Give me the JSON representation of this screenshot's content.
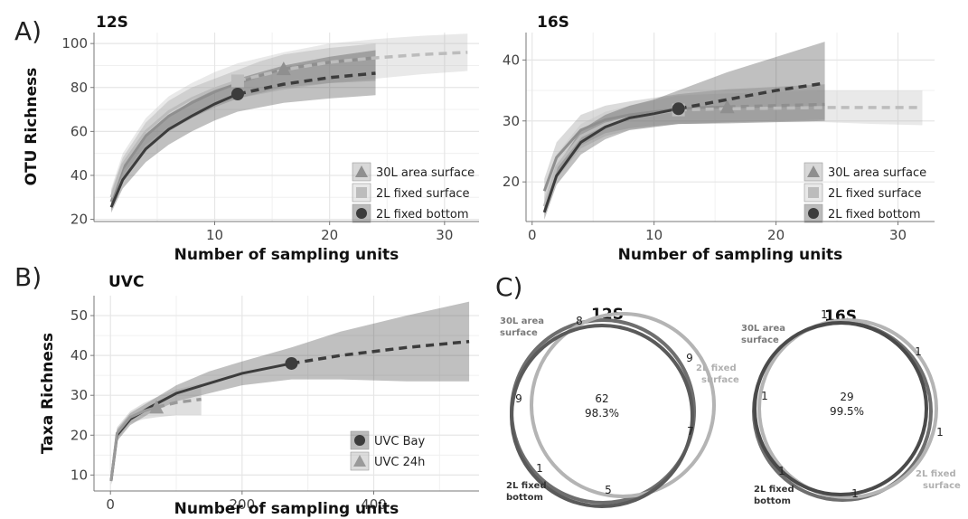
{
  "panel_labels": {
    "a": "A)",
    "b": "B)",
    "c": "C)"
  },
  "colors": {
    "grid": "#e6e6e6",
    "axis": "#777777",
    "area_surface": "#8f8f8f",
    "fixed_surface": "#bcbcbc",
    "fixed_bottom": "#3c3c3c",
    "uvc_bay": "#3c3c3c",
    "uvc_24h": "#9a9a9a",
    "venn_area": "#6e6e6e",
    "venn_fixed_surface": "#b4b4b4",
    "venn_fixed_bottom": "#5a5a5a"
  },
  "chart_data": [
    {
      "id": "p12s",
      "type": "line",
      "title": "12S",
      "xlabel": "Number of sampling units",
      "ylabel": "OTU Richness",
      "xlim": [
        -0.5,
        33
      ],
      "ylim": [
        19,
        105
      ],
      "xticks": [
        10,
        20,
        30
      ],
      "yticks": [
        20,
        40,
        60,
        80,
        100
      ],
      "legend_position": "bottom-right",
      "series": [
        {
          "name": "30L area surface",
          "key": "area_surface",
          "marker": "triangle",
          "x": [
            1,
            2,
            4,
            6,
            8,
            10,
            12,
            14,
            16,
            20,
            24
          ],
          "y": [
            28,
            43,
            58,
            67,
            73,
            78,
            82,
            85.5,
            88.5,
            91.5,
            93.5
          ],
          "lo": [
            24,
            38,
            52,
            60,
            66,
            71,
            75,
            77.5,
            80,
            82,
            83
          ],
          "hi": [
            33,
            48,
            64,
            74,
            80,
            84,
            88,
            92,
            95,
            98,
            100
          ],
          "sample": [
            16,
            88.5
          ],
          "extrap_end": 24
        },
        {
          "name": "2L fixed surface",
          "key": "fixed_surface",
          "marker": "square",
          "x": [
            1,
            2,
            4,
            6,
            8,
            10,
            12,
            16,
            20,
            24,
            28,
            32
          ],
          "y": [
            30,
            45,
            60,
            69,
            75,
            79.5,
            83,
            88,
            91.5,
            93.5,
            95,
            96
          ],
          "lo": [
            26,
            40,
            54,
            62,
            68,
            72,
            75,
            79,
            82,
            84,
            86,
            87.5
          ],
          "hi": [
            34,
            50,
            66,
            76,
            82,
            87,
            91,
            96,
            100,
            102,
            103.5,
            104.5
          ],
          "sample": [
            12,
            83
          ],
          "extrap_end": 32
        },
        {
          "name": "2L fixed bottom",
          "key": "fixed_bottom",
          "marker": "circle",
          "x": [
            1,
            2,
            4,
            6,
            8,
            10,
            12,
            16,
            20,
            24
          ],
          "y": [
            25.5,
            38,
            52,
            61,
            67,
            72.5,
            77,
            81.5,
            84.5,
            86.5
          ],
          "lo": [
            23,
            34,
            46,
            54,
            60,
            65,
            69,
            73,
            75,
            76.5
          ],
          "hi": [
            28,
            42,
            58,
            67,
            74,
            79,
            84,
            90,
            94,
            97
          ],
          "sample": [
            12,
            77
          ],
          "extrap_end": 24
        }
      ]
    },
    {
      "id": "p16s",
      "type": "line",
      "title": "16S",
      "xlabel": "Number of sampling units",
      "ylabel": "",
      "xlim": [
        -0.5,
        33
      ],
      "ylim": [
        13.5,
        44.5
      ],
      "xticks": [
        0,
        10,
        20,
        30
      ],
      "yticks": [
        20,
        30,
        40
      ],
      "legend_position": "bottom-right",
      "series": [
        {
          "name": "30L area surface",
          "key": "area_surface",
          "marker": "triangle",
          "x": [
            1,
            2,
            4,
            6,
            8,
            10,
            12,
            14,
            16,
            20,
            24
          ],
          "y": [
            18.5,
            24,
            28.5,
            30.2,
            31,
            31.5,
            32,
            32.2,
            32.3,
            32.5,
            32.7
          ],
          "lo": [
            16.5,
            21.5,
            26,
            28,
            28.8,
            29.2,
            29.5,
            29.6,
            29.8,
            30,
            30.2
          ],
          "hi": [
            20.5,
            26.5,
            31,
            32.5,
            33.2,
            33.8,
            34.4,
            34.8,
            35.2,
            35.6,
            36
          ],
          "sample": [
            16,
            32.3
          ],
          "extrap_end": 24
        },
        {
          "name": "2L fixed surface",
          "key": "fixed_surface",
          "marker": "square",
          "x": [
            1,
            2,
            4,
            6,
            8,
            10,
            12,
            16,
            20,
            24,
            28,
            32
          ],
          "y": [
            16,
            22.5,
            27.5,
            29.5,
            30.5,
            31.2,
            31.8,
            32,
            32.1,
            32.2,
            32.2,
            32.2
          ],
          "lo": [
            14.5,
            20.5,
            25.5,
            27.5,
            28.5,
            29,
            29.5,
            29.7,
            29.8,
            29.8,
            29.5,
            29.3
          ],
          "hi": [
            17.5,
            24.5,
            29.5,
            31.5,
            32.5,
            33.4,
            34.2,
            34.5,
            34.8,
            35,
            35,
            35
          ],
          "sample": [
            12,
            31.8
          ],
          "extrap_end": 32
        },
        {
          "name": "2L fixed bottom",
          "key": "fixed_bottom",
          "marker": "circle",
          "x": [
            1,
            2,
            4,
            6,
            8,
            10,
            12,
            16,
            20,
            24
          ],
          "y": [
            15,
            21,
            26.5,
            29,
            30.5,
            31.2,
            32,
            33.5,
            35,
            36.2
          ],
          "lo": [
            13.8,
            19.5,
            24.5,
            27,
            28.5,
            29,
            29.5,
            29.6,
            29.8,
            30
          ],
          "hi": [
            16.5,
            22.5,
            28.5,
            31,
            32.5,
            33.5,
            35,
            38,
            40.5,
            43
          ],
          "sample": [
            12,
            32
          ],
          "extrap_end": 24
        }
      ]
    },
    {
      "id": "puvc",
      "type": "line",
      "title": "UVC",
      "xlabel": "Number of sampling units",
      "ylabel": "Taxa Richness",
      "xlim": [
        -25,
        560
      ],
      "ylim": [
        6,
        55
      ],
      "xticks": [
        0,
        200,
        400
      ],
      "yticks": [
        10,
        20,
        30,
        40,
        50
      ],
      "legend_position": "bottom-right",
      "series": [
        {
          "name": "UVC Bay",
          "key": "uvc_bay",
          "marker": "circle",
          "x": [
            1,
            10,
            30,
            60,
            100,
            150,
            200,
            275,
            350,
            450,
            545
          ],
          "y": [
            8.5,
            20,
            24,
            27,
            30.5,
            33,
            35.5,
            38,
            40,
            42,
            43.5
          ],
          "lo": [
            7.5,
            18.5,
            22.5,
            25.5,
            28.5,
            30.5,
            32.5,
            34,
            34,
            33.5,
            33.5
          ],
          "hi": [
            9.5,
            21.5,
            25.5,
            28.5,
            32.5,
            36,
            38.5,
            42,
            46,
            50,
            53.5
          ],
          "sample": [
            275,
            38
          ],
          "extrap_end": 545
        },
        {
          "name": "UVC 24h",
          "key": "uvc_24h",
          "marker": "triangle",
          "x": [
            1,
            10,
            30,
            50,
            70,
            100,
            138
          ],
          "y": [
            8.5,
            20.5,
            24.5,
            26,
            27,
            28.2,
            29
          ],
          "lo": [
            7.5,
            19,
            23,
            24,
            24.5,
            25,
            25
          ],
          "hi": [
            9.5,
            22,
            26,
            28,
            29.5,
            31.5,
            33
          ],
          "sample": [
            70,
            27
          ],
          "extrap_end": 138
        }
      ]
    }
  ],
  "venn": [
    {
      "id": "v12s",
      "title": "12S",
      "labels": {
        "area": [
          "30L area",
          "surface"
        ],
        "fixed_surface": [
          "2L fixed",
          "surface"
        ],
        "fixed_bottom": [
          "2L fixed",
          "bottom"
        ]
      },
      "center": [
        "62",
        "98.3%"
      ],
      "numbers": [
        "8",
        "9",
        "9",
        "7",
        "1",
        "5"
      ]
    },
    {
      "id": "v16s",
      "title": "16S",
      "labels": {
        "area": [
          "30L area",
          "surface"
        ],
        "fixed_surface": [
          "2L fixed",
          "surface"
        ],
        "fixed_bottom": [
          "2L fixed",
          "bottom"
        ]
      },
      "center": [
        "29",
        "99.5%"
      ],
      "numbers": [
        "1",
        "1",
        "1",
        "1",
        "1",
        "1"
      ]
    }
  ]
}
